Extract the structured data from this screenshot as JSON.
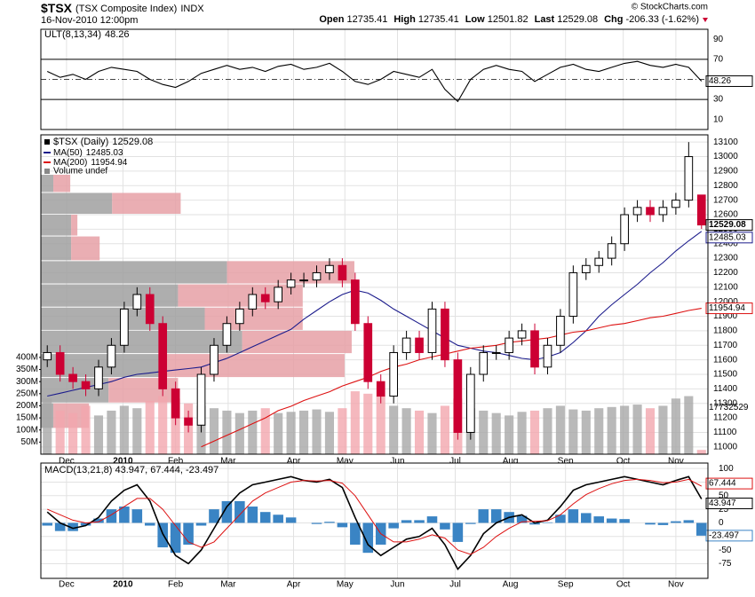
{
  "header": {
    "symbol": "$TSX",
    "name": "(TSX Composite Index)",
    "exchange": "INDX",
    "datetime": "16-Nov-2010 12:00pm",
    "credit": "© StockCharts.com",
    "quote": [
      {
        "label": "Open",
        "value": 12735.41
      },
      {
        "label": "High",
        "value": 12735.41
      },
      {
        "label": "Low",
        "value": 12501.82
      },
      {
        "label": "Last",
        "value": 12529.08
      },
      {
        "label": "Chg",
        "value": -206.33
      }
    ],
    "chg_pct": "(-1.62%)"
  },
  "chart_data": [
    {
      "type": "line",
      "name": "ULT(8,13,34)",
      "color": "#000000",
      "values": [
        58,
        52,
        55,
        50,
        58,
        62,
        60,
        58,
        50,
        45,
        42,
        48,
        56,
        60,
        64,
        60,
        62,
        58,
        63,
        65,
        60,
        62,
        66,
        58,
        48,
        45,
        50,
        58,
        55,
        52,
        60,
        40,
        28,
        50,
        60,
        64,
        60,
        58,
        48,
        55,
        62,
        65,
        60,
        58,
        62,
        66,
        68,
        64,
        62,
        65,
        62,
        48.26
      ],
      "ylim": [
        0,
        100
      ],
      "yticks": [
        10,
        30,
        50,
        70,
        90
      ],
      "levels": [
        30,
        50,
        70
      ]
    },
    {
      "type": "candlestick",
      "title": "$TSX (Daily)",
      "up_color": "#000000",
      "down_color": "#cc0033",
      "open": [
        11600,
        11650,
        11500,
        11450,
        11400,
        11550,
        11700,
        11950,
        12050,
        11850,
        11400,
        11200,
        11150,
        11500,
        11700,
        11850,
        11950,
        12050,
        12000,
        12100,
        12150,
        12150,
        12200,
        12250,
        12150,
        11850,
        11450,
        11350,
        11650,
        11750,
        11650,
        11950,
        11600,
        11100,
        11500,
        11650,
        11650,
        11750,
        11800,
        11550,
        11700,
        11900,
        12200,
        12250,
        12300,
        12400,
        12600,
        12650,
        12600,
        12650,
        12700,
        12735.41
      ],
      "high": [
        11700,
        11700,
        11550,
        11500,
        11600,
        11750,
        12000,
        12100,
        12100,
        11900,
        11450,
        11250,
        11550,
        11750,
        11900,
        12000,
        12100,
        12100,
        12150,
        12200,
        12200,
        12250,
        12300,
        12300,
        12200,
        11900,
        11500,
        11700,
        11800,
        11800,
        12000,
        12000,
        11650,
        11550,
        11700,
        11700,
        11800,
        11850,
        11850,
        11750,
        11950,
        12250,
        12300,
        12350,
        12450,
        12650,
        12700,
        12700,
        12700,
        12750,
        13100,
        12735.41
      ],
      "low": [
        11550,
        11450,
        11400,
        11350,
        11350,
        11500,
        11650,
        11900,
        11800,
        11350,
        11150,
        11100,
        11100,
        11450,
        11650,
        11800,
        11900,
        11950,
        11950,
        12050,
        12100,
        12100,
        12150,
        12100,
        11800,
        11400,
        11300,
        11300,
        11600,
        11600,
        11600,
        11550,
        11050,
        11050,
        11450,
        11600,
        11600,
        11700,
        11500,
        11500,
        11650,
        11850,
        12150,
        12200,
        12250,
        12350,
        12550,
        12550,
        12550,
        12600,
        12650,
        12501.82
      ],
      "close": [
        11650,
        11500,
        11450,
        11400,
        11550,
        11700,
        11950,
        12050,
        11850,
        11400,
        11200,
        11150,
        11500,
        11700,
        11850,
        11950,
        12050,
        12000,
        12100,
        12150,
        12150,
        12200,
        12250,
        12150,
        11850,
        11450,
        11350,
        11650,
        11750,
        11650,
        11950,
        11600,
        11100,
        11500,
        11650,
        11650,
        11750,
        11800,
        11550,
        11700,
        11900,
        12200,
        12250,
        12300,
        12400,
        12600,
        12650,
        12600,
        12650,
        12700,
        13000,
        12529.08
      ],
      "ylim": [
        10950,
        13150
      ],
      "yticks": [
        11000,
        11100,
        11200,
        11300,
        11400,
        11500,
        11600,
        11700,
        11800,
        11900,
        12000,
        12100,
        12200,
        12300,
        12400,
        12500,
        12600,
        12700,
        12800,
        12900,
        13000,
        13100
      ],
      "grid": true,
      "xticks": [
        {
          "value": 1.5,
          "label": "Dec"
        },
        {
          "value": 5.9,
          "label": "2010"
        },
        {
          "value": 10.0,
          "label": "Feb"
        },
        {
          "value": 14.1,
          "label": "Mar"
        },
        {
          "value": 19.2,
          "label": "Apr"
        },
        {
          "value": 23.2,
          "label": "May"
        },
        {
          "value": 27.3,
          "label": "Jun"
        },
        {
          "value": 31.8,
          "label": "Jul"
        },
        {
          "value": 36.1,
          "label": "Aug"
        },
        {
          "value": 40.4,
          "label": "Sep"
        },
        {
          "value": 44.9,
          "label": "Oct"
        },
        {
          "value": 49.0,
          "label": "Nov"
        }
      ],
      "series": [
        {
          "name": "MA(50)",
          "color": "#1c1c8c",
          "values": [
            11350,
            11370,
            11390,
            11410,
            11430,
            11450,
            11480,
            11500,
            11510,
            11520,
            11530,
            11540,
            11550,
            11580,
            11610,
            11650,
            11690,
            11730,
            11770,
            11810,
            11880,
            11940,
            12000,
            12050,
            12080,
            12060,
            12010,
            11950,
            11900,
            11850,
            11800,
            11750,
            11700,
            11680,
            11660,
            11650,
            11630,
            11610,
            11600,
            11620,
            11650,
            11720,
            11800,
            11900,
            11980,
            12050,
            12120,
            12200,
            12270,
            12350,
            12420,
            12485.03
          ]
        },
        {
          "name": "MA(200)",
          "color": "#dd1111",
          "values": [
            null,
            null,
            null,
            null,
            null,
            null,
            null,
            null,
            null,
            null,
            null,
            null,
            11000,
            11040,
            11080,
            11120,
            11160,
            11200,
            11250,
            11280,
            11320,
            11350,
            11380,
            11420,
            11450,
            11480,
            11520,
            11550,
            11570,
            11600,
            11620,
            11640,
            11660,
            11680,
            11690,
            11700,
            11720,
            11730,
            11740,
            11750,
            11770,
            11790,
            11800,
            11820,
            11840,
            11850,
            11870,
            11890,
            11900,
            11920,
            11940,
            11954.94
          ]
        }
      ],
      "volume": {
        "name": "Volume undef",
        "up_color": "#a8a8a8",
        "down_color": "#f2a6ae",
        "values": [
          230000000,
          180000000,
          170000000,
          200000000,
          160000000,
          180000000,
          200000000,
          190000000,
          220000000,
          240000000,
          230000000,
          210000000,
          200000000,
          190000000,
          180000000,
          170000000,
          180000000,
          190000000,
          170000000,
          175000000,
          180000000,
          185000000,
          175000000,
          190000000,
          260000000,
          250000000,
          240000000,
          200000000,
          190000000,
          180000000,
          170000000,
          200000000,
          230000000,
          190000000,
          180000000,
          170000000,
          160000000,
          175000000,
          180000000,
          190000000,
          200000000,
          185000000,
          180000000,
          190000000,
          195000000,
          200000000,
          205000000,
          190000000,
          200000000,
          230000000,
          240000000,
          17732529
        ],
        "ylim": [
          0,
          1320000000
        ],
        "yticks": [
          {
            "value": 50000000,
            "label": "50M"
          },
          {
            "value": 100000000,
            "label": "100M"
          },
          {
            "value": 150000000,
            "label": "150M"
          },
          {
            "value": 200000000,
            "label": "200M"
          },
          {
            "value": 250000000,
            "label": "250M"
          },
          {
            "value": 300000000,
            "label": "300M"
          },
          {
            "value": 350000000,
            "label": "350M"
          },
          {
            "value": 400000000,
            "label": "400M"
          }
        ]
      },
      "volume_by_price": {
        "edges": [
          12875,
          12750,
          12600,
          12450,
          12280,
          12120,
          11960,
          11800,
          11640,
          11475,
          11300,
          11125
        ],
        "up": [
          14,
          80,
          34,
          34,
          209,
          154,
          184,
          226,
          134,
          76,
          14
        ],
        "down": [
          19,
          77,
          7,
          32,
          143,
          140,
          110,
          123,
          207,
          78,
          40
        ],
        "up_color": "#a0a0a0",
        "down_color": "#e6a0a6"
      }
    },
    {
      "type": "macd",
      "legend": "MACD(13,21,8) 43.947, 67.444, -23.497",
      "series": [
        {
          "color": "#000000",
          "values": [
            20,
            0,
            -10,
            -5,
            10,
            40,
            60,
            70,
            40,
            -20,
            -60,
            -75,
            -50,
            -10,
            30,
            55,
            70,
            75,
            80,
            85,
            78,
            75,
            80,
            65,
            10,
            -40,
            -60,
            -45,
            -30,
            -25,
            -10,
            -40,
            -85,
            -60,
            -20,
            0,
            10,
            15,
            0,
            5,
            30,
            60,
            70,
            75,
            80,
            85,
            80,
            75,
            70,
            78,
            85,
            43.947
          ]
        },
        {
          "color": "#dd1111",
          "values": [
            25,
            15,
            5,
            0,
            2,
            15,
            30,
            45,
            45,
            25,
            -5,
            -35,
            -45,
            -35,
            -10,
            15,
            40,
            55,
            65,
            75,
            78,
            77,
            78,
            73,
            50,
            15,
            -20,
            -35,
            -35,
            -30,
            -22,
            -28,
            -50,
            -58,
            -45,
            -25,
            -10,
            2,
            3,
            4,
            15,
            35,
            52,
            63,
            72,
            78,
            80,
            78,
            74,
            75,
            80,
            67.444
          ]
        }
      ],
      "histogram": {
        "color": "#3a84c4",
        "values": [
          -5,
          -15,
          -15,
          -5,
          8,
          25,
          30,
          25,
          -5,
          -45,
          -55,
          -40,
          -5,
          25,
          40,
          40,
          30,
          20,
          15,
          10,
          0,
          -2,
          2,
          -8,
          -40,
          -55,
          -40,
          -10,
          5,
          5,
          12,
          -12,
          -35,
          -2,
          25,
          25,
          20,
          13,
          -3,
          1,
          15,
          25,
          18,
          12,
          8,
          7,
          0,
          -3,
          -4,
          3,
          5,
          -23.497
        ]
      },
      "ylim": [
        -102,
        110
      ],
      "yticks": [
        100,
        75,
        50,
        25,
        0,
        -25,
        -50,
        -75
      ],
      "xticks": [
        {
          "value": 1.5,
          "label": "Dec"
        },
        {
          "value": 5.9,
          "label": "2010"
        },
        {
          "value": 10.0,
          "label": "Feb"
        },
        {
          "value": 14.1,
          "label": "Mar"
        },
        {
          "value": 19.2,
          "label": "Apr"
        },
        {
          "value": 23.2,
          "label": "May"
        },
        {
          "value": 27.3,
          "label": "Jun"
        },
        {
          "value": 31.8,
          "label": "Jul"
        },
        {
          "value": 36.1,
          "label": "Aug"
        },
        {
          "value": 40.4,
          "label": "Sep"
        },
        {
          "value": 44.9,
          "label": "Oct"
        },
        {
          "value": 49.0,
          "label": "Nov"
        }
      ]
    }
  ]
}
